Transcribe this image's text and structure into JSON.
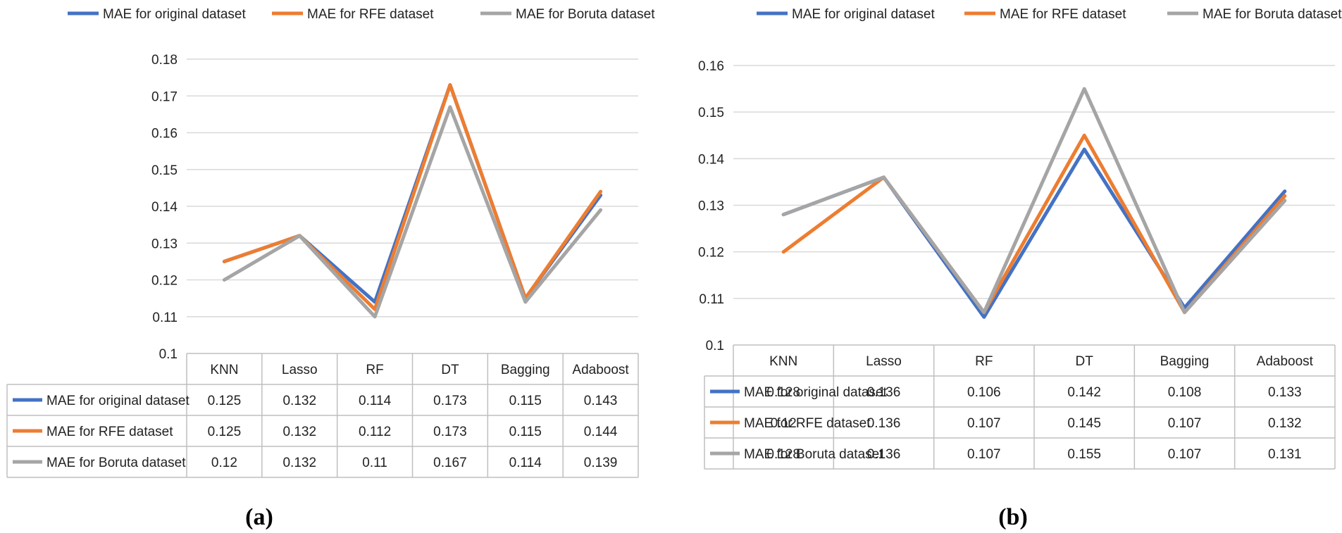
{
  "colors": {
    "original": "#4472C4",
    "rfe": "#ED7D31",
    "boruta": "#A5A5A5",
    "grid": "#D9D9D9",
    "border": "#BFBFBF"
  },
  "chart_data": [
    {
      "type": "line",
      "panel_label": "(a)",
      "categories": [
        "KNN",
        "Lasso",
        "RF",
        "DT",
        "Bagging",
        "Adaboost"
      ],
      "series": [
        {
          "name": "MAE for original dataset",
          "values": [
            0.125,
            0.132,
            0.114,
            0.173,
            0.115,
            0.143
          ],
          "color": "#4472C4"
        },
        {
          "name": "MAE for RFE dataset",
          "values": [
            0.125,
            0.132,
            0.112,
            0.173,
            0.115,
            0.144
          ],
          "color": "#ED7D31"
        },
        {
          "name": "MAE for Boruta dataset",
          "values": [
            0.12,
            0.132,
            0.11,
            0.167,
            0.114,
            0.139
          ],
          "color": "#A5A5A5"
        }
      ],
      "table_values": [
        [
          "0.125",
          "0.132",
          "0.114",
          "0.173",
          "0.115",
          "0.143"
        ],
        [
          "0.125",
          "0.132",
          "0.112",
          "0.173",
          "0.115",
          "0.144"
        ],
        [
          "0.12",
          "0.132",
          "0.11",
          "0.167",
          "0.114",
          "0.139"
        ]
      ],
      "yticks": [
        "0.1",
        "0.11",
        "0.12",
        "0.13",
        "0.14",
        "0.15",
        "0.16",
        "0.17",
        "0.18"
      ],
      "ylim": [
        0.1,
        0.18
      ],
      "grid": true,
      "legend": "top",
      "data_table": true
    },
    {
      "type": "line",
      "panel_label": "(b)",
      "categories": [
        "KNN",
        "Lasso",
        "RF",
        "DT",
        "Bagging",
        "Adaboost"
      ],
      "series": [
        {
          "name": "MAE for original dataset",
          "values": [
            0.128,
            0.136,
            0.106,
            0.142,
            0.108,
            0.133
          ],
          "color": "#4472C4"
        },
        {
          "name": "MAE for RFE dataset",
          "values": [
            0.12,
            0.136,
            0.107,
            0.145,
            0.107,
            0.132
          ],
          "color": "#ED7D31"
        },
        {
          "name": "MAE for Boruta dataset",
          "values": [
            0.128,
            0.136,
            0.107,
            0.155,
            0.107,
            0.131
          ],
          "color": "#A5A5A5"
        }
      ],
      "table_values": [
        [
          "0.128",
          "0.136",
          "0.106",
          "0.142",
          "0.108",
          "0.133"
        ],
        [
          "0.12",
          "0.136",
          "0.107",
          "0.145",
          "0.107",
          "0.132"
        ],
        [
          "0.128",
          "0.136",
          "0.107",
          "0.155",
          "0.107",
          "0.131"
        ]
      ],
      "yticks": [
        "0.1",
        "0.11",
        "0.12",
        "0.13",
        "0.14",
        "0.15",
        "0.16"
      ],
      "ylim": [
        0.1,
        0.16
      ],
      "grid": true,
      "legend": "top",
      "data_table": true
    }
  ]
}
